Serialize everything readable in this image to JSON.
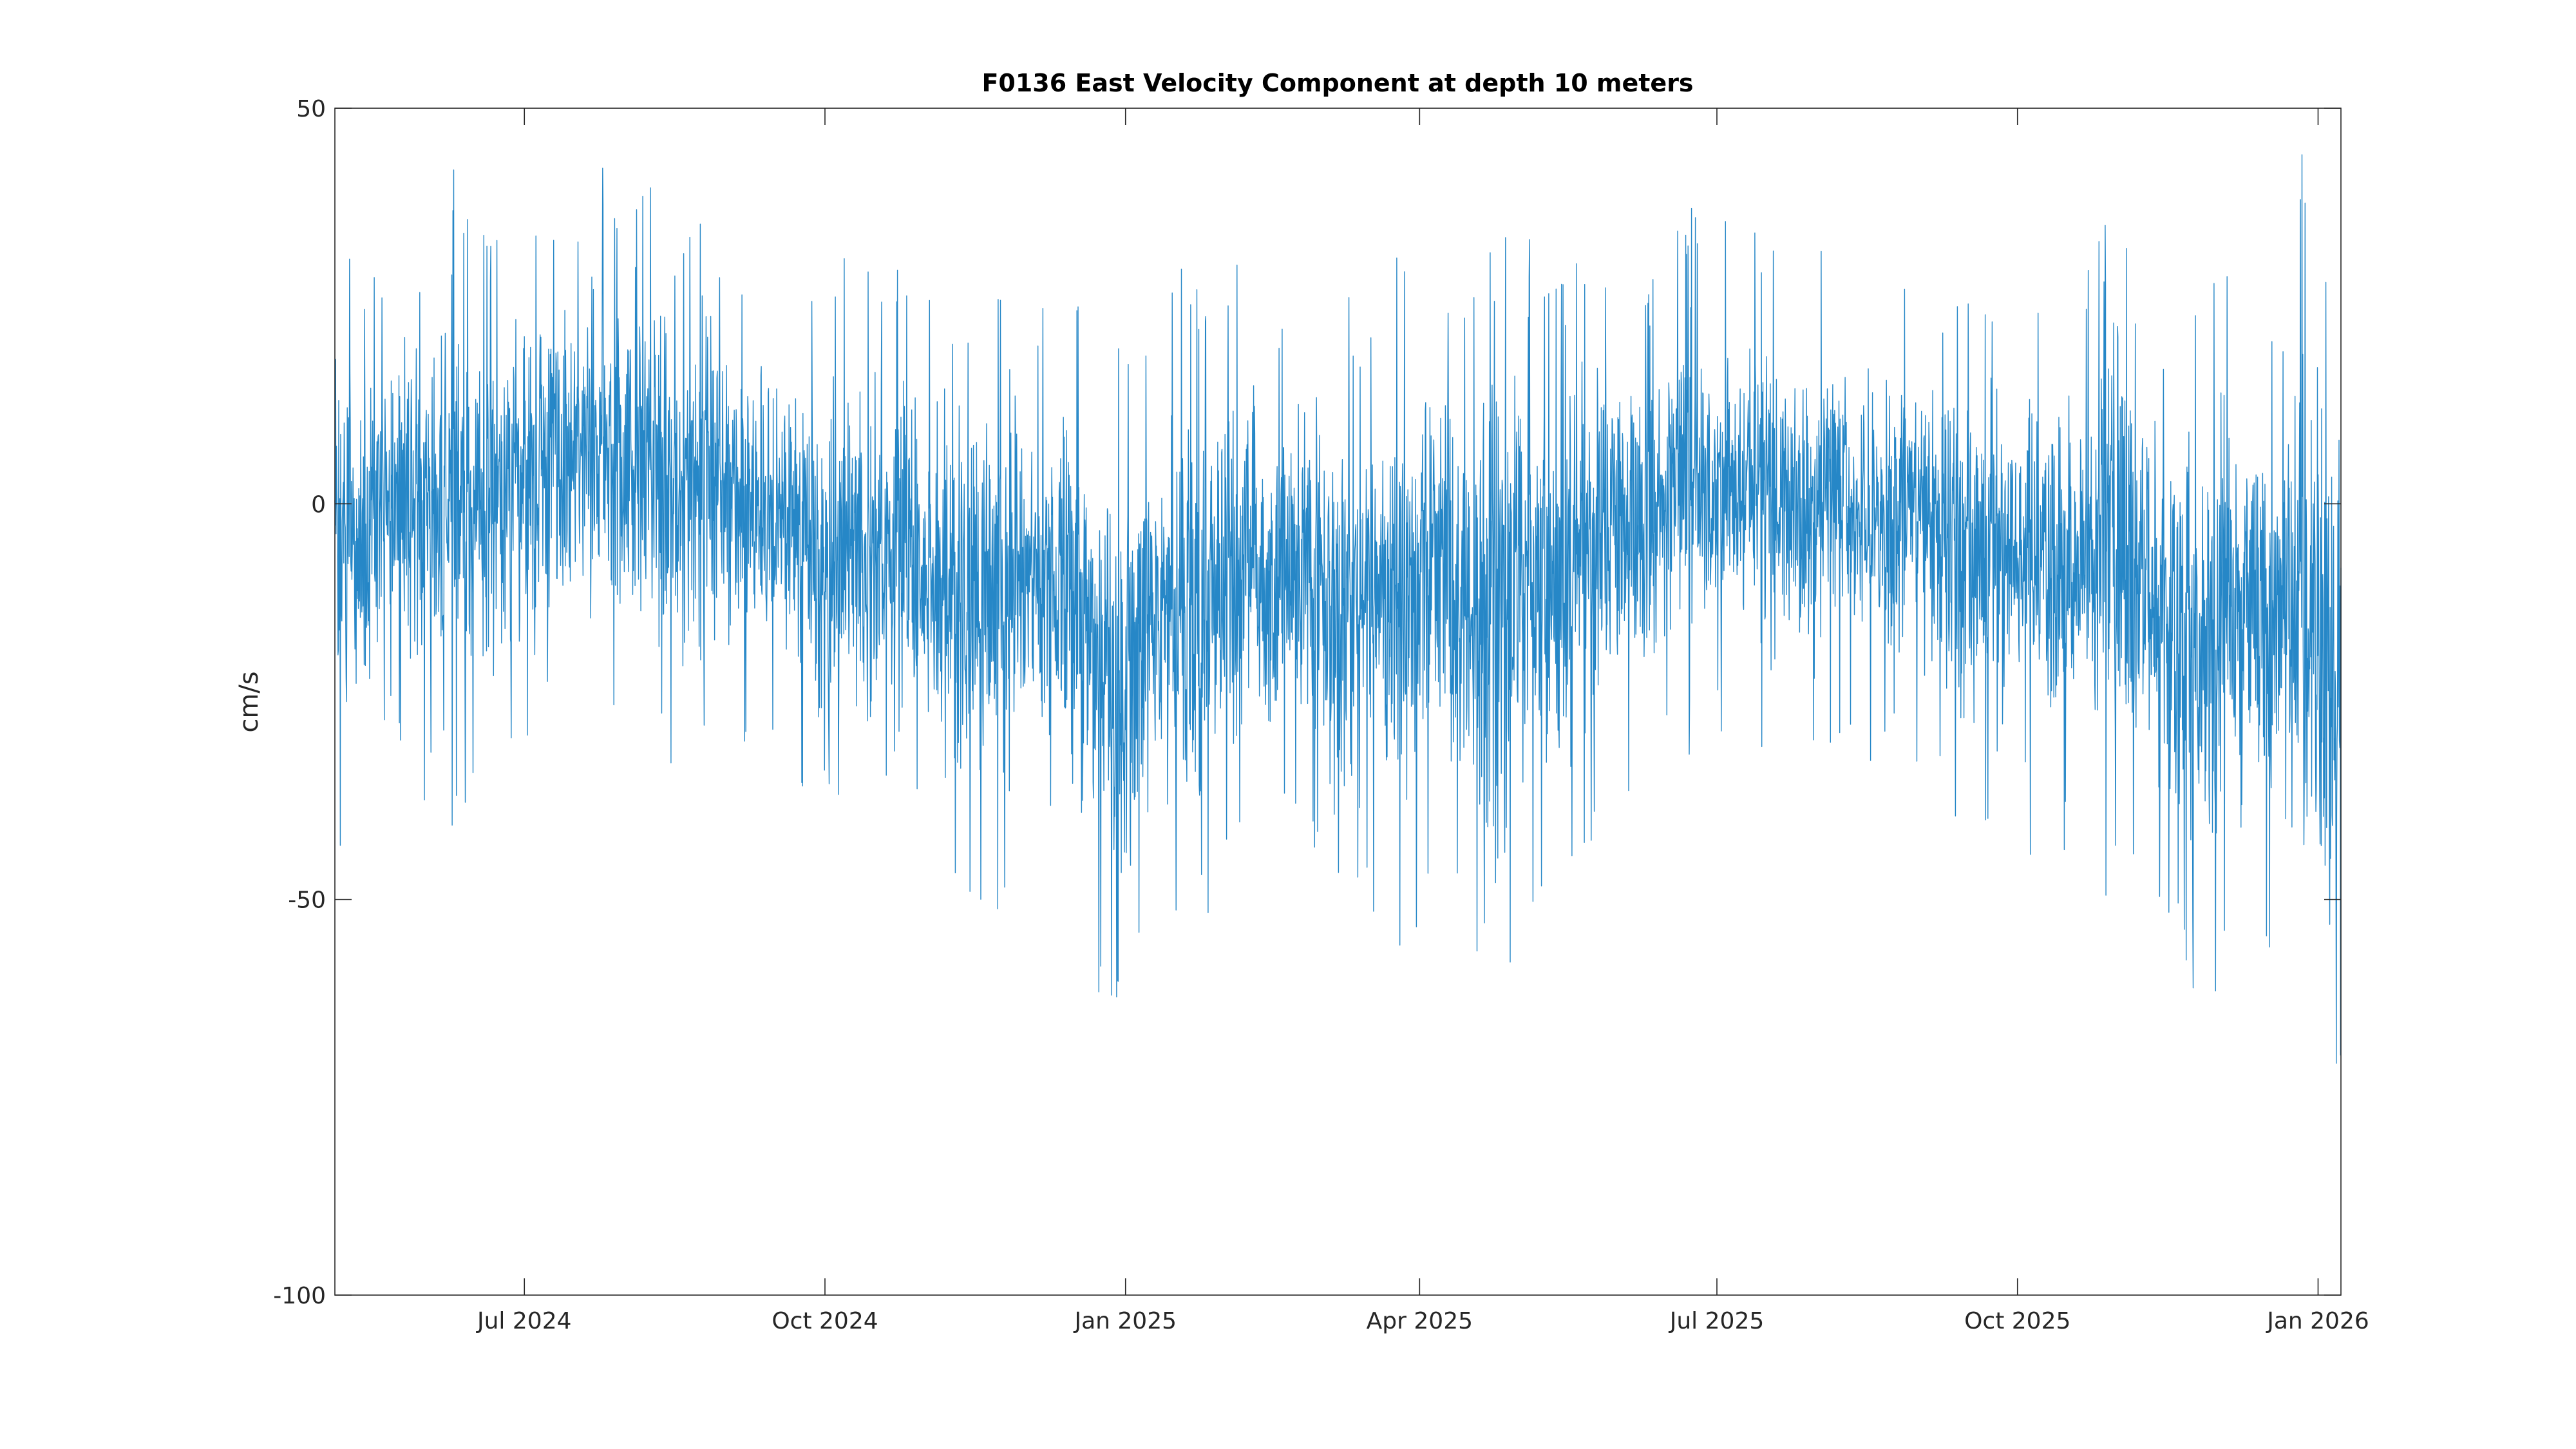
{
  "chart_data": {
    "type": "line",
    "title": "F0136 East Velocity Component at depth 10 meters",
    "xlabel": "",
    "ylabel": "cm/s",
    "x_range": [
      "2024-05-04",
      "2026-01-08"
    ],
    "ylim": [
      -100,
      50
    ],
    "x_ticks": [
      {
        "date": "2024-07-01",
        "label": "Jul 2024"
      },
      {
        "date": "2024-10-01",
        "label": "Oct 2024"
      },
      {
        "date": "2025-01-01",
        "label": "Jan 2025"
      },
      {
        "date": "2025-04-01",
        "label": "Apr 2025"
      },
      {
        "date": "2025-07-01",
        "label": "Jul 2025"
      },
      {
        "date": "2025-10-01",
        "label": "Oct 2025"
      },
      {
        "date": "2026-01-01",
        "label": "Jan 2026"
      }
    ],
    "y_ticks": [
      {
        "value": 50,
        "label": "50"
      },
      {
        "value": 0,
        "label": "0"
      },
      {
        "value": -50,
        "label": "-50"
      },
      {
        "value": -100,
        "label": "-100"
      }
    ],
    "grid": false,
    "series": [
      {
        "color": "#0072BD",
        "x": [
          "2024-05-04",
          "2024-05-11",
          "2024-05-18",
          "2024-05-25",
          "2024-06-01",
          "2024-06-08",
          "2024-06-15",
          "2024-06-22",
          "2024-06-29",
          "2024-07-06",
          "2024-07-13",
          "2024-07-20",
          "2024-07-27",
          "2024-08-03",
          "2024-08-10",
          "2024-08-17",
          "2024-08-24",
          "2024-08-31",
          "2024-09-07",
          "2024-09-14",
          "2024-09-21",
          "2024-09-28",
          "2024-10-05",
          "2024-10-12",
          "2024-10-19",
          "2024-10-26",
          "2024-11-02",
          "2024-11-09",
          "2024-11-16",
          "2024-11-23",
          "2024-11-30",
          "2024-12-07",
          "2024-12-14",
          "2024-12-21",
          "2024-12-28",
          "2025-01-04",
          "2025-01-11",
          "2025-01-18",
          "2025-01-25",
          "2025-02-01",
          "2025-02-08",
          "2025-02-15",
          "2025-02-22",
          "2025-03-01",
          "2025-03-08",
          "2025-03-15",
          "2025-03-22",
          "2025-03-29",
          "2025-04-05",
          "2025-04-12",
          "2025-04-19",
          "2025-04-26",
          "2025-05-03",
          "2025-05-10",
          "2025-05-17",
          "2025-05-24",
          "2025-05-31",
          "2025-06-07",
          "2025-06-14",
          "2025-06-21",
          "2025-06-28",
          "2025-07-05",
          "2025-07-12",
          "2025-07-19",
          "2025-07-26",
          "2025-08-02",
          "2025-08-09",
          "2025-08-16",
          "2025-08-23",
          "2025-08-30",
          "2025-09-06",
          "2025-09-13",
          "2025-09-20",
          "2025-09-27",
          "2025-10-04",
          "2025-10-11",
          "2025-10-18",
          "2025-10-25",
          "2025-11-01",
          "2025-11-08",
          "2025-11-15",
          "2025-11-22",
          "2025-11-29",
          "2025-12-06",
          "2025-12-13",
          "2025-12-20",
          "2025-12-27",
          "2026-01-03",
          "2026-01-08"
        ],
        "max": [
          48,
          27,
          30,
          38,
          40,
          45,
          35,
          33,
          40,
          41,
          40,
          48,
          45,
          36,
          43,
          35,
          39,
          34,
          30,
          30,
          33,
          30,
          34,
          30,
          30,
          30,
          32,
          28,
          28,
          33,
          30,
          29,
          30,
          30,
          28,
          20,
          22,
          30,
          28,
          30,
          35,
          25,
          30,
          26,
          28,
          25,
          30,
          35,
          40,
          30,
          28,
          37,
          34,
          33,
          32,
          35,
          35,
          34,
          32,
          38,
          40,
          35,
          35,
          33,
          28,
          33,
          34,
          32,
          30,
          33,
          28,
          30,
          30,
          32,
          30,
          28,
          25,
          33,
          40,
          37,
          25,
          25,
          30,
          32,
          30,
          25,
          47,
          37,
          30
        ],
        "min": [
          -52,
          -40,
          -30,
          -33,
          -38,
          -43,
          -38,
          -35,
          -37,
          -30,
          -30,
          -30,
          -35,
          -30,
          -33,
          -38,
          -32,
          -30,
          -33,
          -35,
          -38,
          -40,
          -45,
          -42,
          -48,
          -42,
          -48,
          -52,
          -50,
          -55,
          -52,
          -45,
          -50,
          -60,
          -68,
          -57,
          -52,
          -58,
          -61,
          -48,
          -45,
          -47,
          -43,
          -50,
          -57,
          -50,
          -55,
          -67,
          -48,
          -55,
          -60,
          -70,
          -55,
          -57,
          -50,
          -45,
          -40,
          -40,
          -32,
          -30,
          -38,
          -32,
          -30,
          -33,
          -30,
          -33,
          -30,
          -33,
          -32,
          -35,
          -33,
          -45,
          -43,
          -40,
          -45,
          -45,
          -45,
          -50,
          -53,
          -50,
          -55,
          -60,
          -65,
          -58,
          -62,
          -55,
          -64,
          -83,
          -75
        ]
      }
    ]
  }
}
